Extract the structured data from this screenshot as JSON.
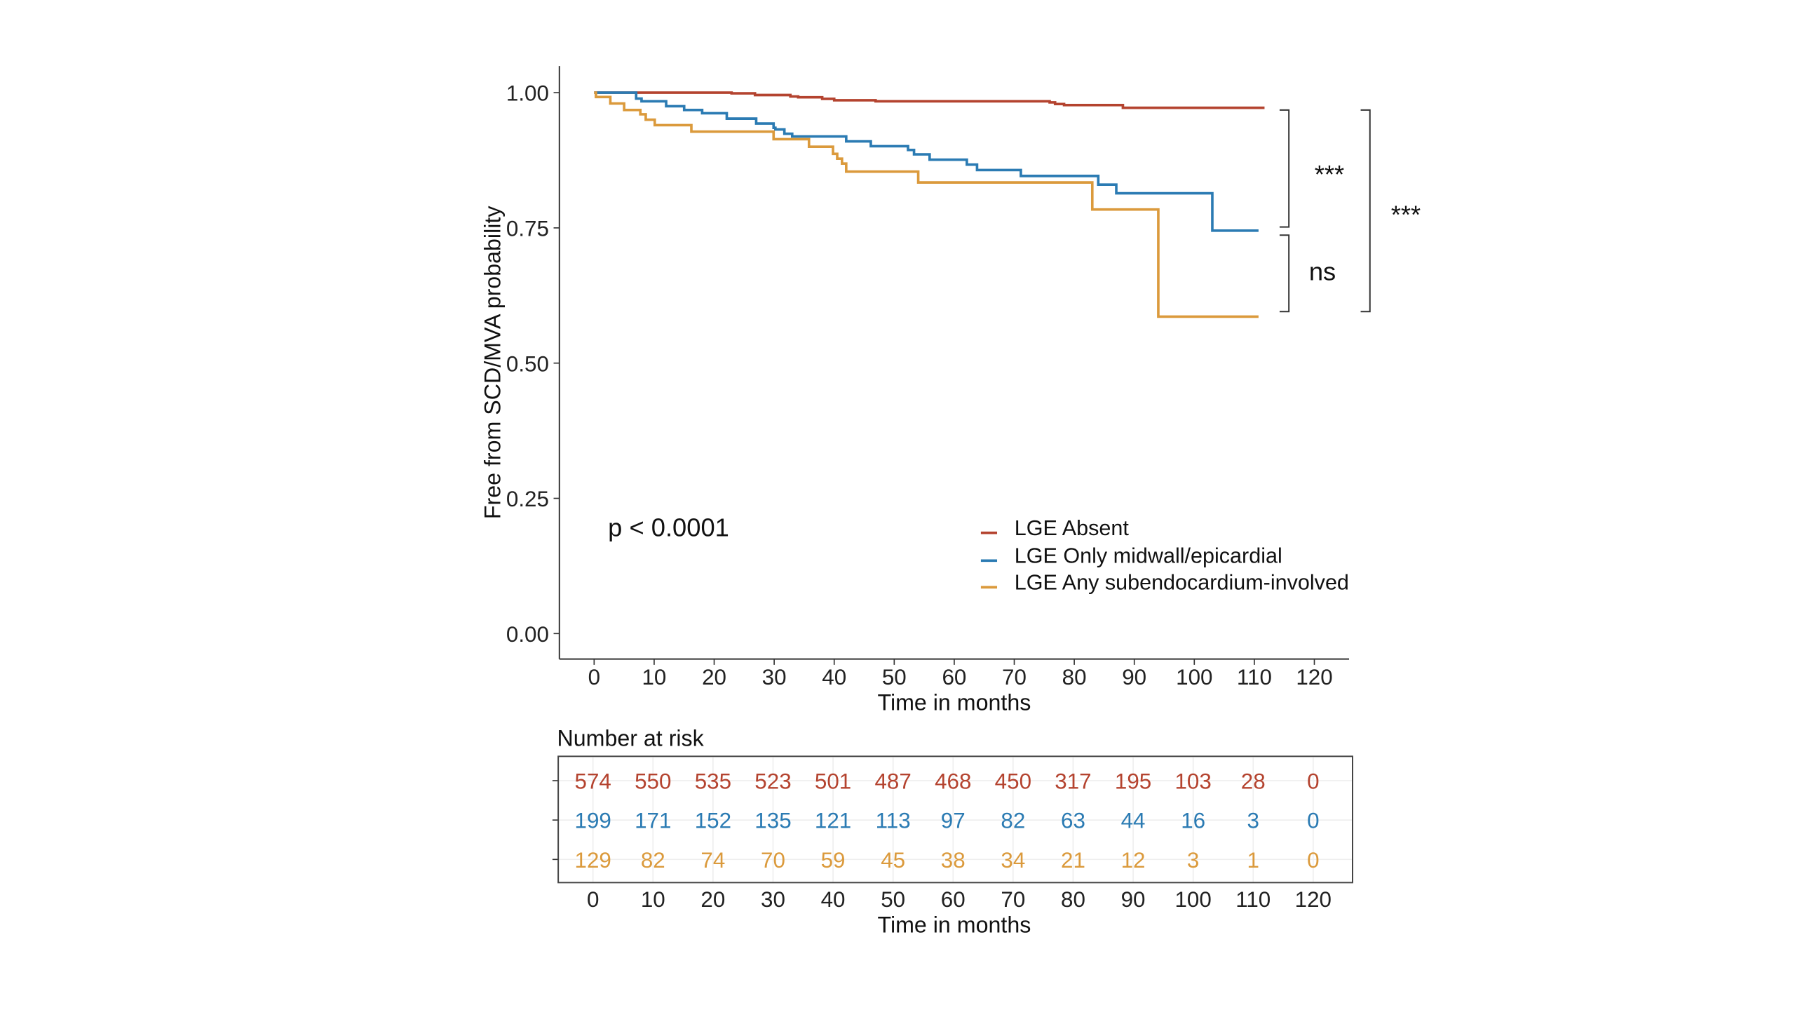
{
  "chart_data": {
    "type": "line",
    "subtype": "kaplan-meier-step",
    "xlabel": "Time in months",
    "ylabel": "Free from SCD/MVA probability",
    "xlim": [
      0,
      120
    ],
    "ylim": [
      0,
      1
    ],
    "x_ticks": [
      "0",
      "10",
      "20",
      "30",
      "40",
      "50",
      "60",
      "70",
      "80",
      "90",
      "100",
      "110",
      "120"
    ],
    "x_tick_values": [
      0,
      10,
      20,
      30,
      40,
      50,
      60,
      70,
      80,
      90,
      100,
      110,
      120
    ],
    "y_ticks": [
      "0.00",
      "0.25",
      "0.50",
      "0.75",
      "1.00"
    ],
    "y_tick_values": [
      0,
      0.25,
      0.5,
      0.75,
      1
    ],
    "grid": false,
    "legend_placement": "bottom-right",
    "annotation": "p < 0.0001",
    "series": [
      {
        "name": "LGE Absent",
        "color": "#b4432f",
        "steps": [
          [
            0,
            1.0
          ],
          [
            22.9,
            0.9987
          ],
          [
            26.8,
            0.9956
          ],
          [
            32.7,
            0.993
          ],
          [
            34,
            0.9915
          ],
          [
            38,
            0.9886
          ],
          [
            40,
            0.986
          ],
          [
            46.9,
            0.984
          ],
          [
            75.9,
            0.982
          ],
          [
            76.8,
            0.979
          ],
          [
            78.3,
            0.977
          ],
          [
            88.1,
            0.972
          ],
          [
            111.7,
            0.972
          ]
        ]
      },
      {
        "name": "LGE Only midwall/epicardial",
        "color": "#2b7bb3",
        "steps": [
          [
            0,
            1.0
          ],
          [
            7.0,
            0.989
          ],
          [
            7.9,
            0.984
          ],
          [
            12,
            0.975
          ],
          [
            15,
            0.968
          ],
          [
            18,
            0.962
          ],
          [
            22.1,
            0.952
          ],
          [
            27,
            0.943
          ],
          [
            29.9,
            0.935
          ],
          [
            30.2,
            0.932
          ],
          [
            31.7,
            0.924
          ],
          [
            33,
            0.919
          ],
          [
            42,
            0.91
          ],
          [
            46.1,
            0.901
          ],
          [
            52.3,
            0.894
          ],
          [
            53.3,
            0.886
          ],
          [
            55.9,
            0.876
          ],
          [
            62.1,
            0.867
          ],
          [
            63.8,
            0.857
          ],
          [
            71.1,
            0.846
          ],
          [
            84,
            0.83
          ],
          [
            87,
            0.814
          ],
          [
            103,
            0.745
          ],
          [
            110.7,
            0.745
          ]
        ]
      },
      {
        "name": "LGE Any subendocardium-involved",
        "color": "#db9a3c",
        "steps": [
          [
            0,
            1.0
          ],
          [
            0.3,
            0.992
          ],
          [
            2.7,
            0.98
          ],
          [
            5,
            0.968
          ],
          [
            7.7,
            0.96
          ],
          [
            8.6,
            0.95
          ],
          [
            10.1,
            0.94
          ],
          [
            16.2,
            0.928
          ],
          [
            29.9,
            0.914
          ],
          [
            35.8,
            0.9
          ],
          [
            39.8,
            0.887
          ],
          [
            40.5,
            0.878
          ],
          [
            41.3,
            0.869
          ],
          [
            42,
            0.854
          ],
          [
            54,
            0.834
          ],
          [
            83,
            0.784
          ],
          [
            94,
            0.586
          ],
          [
            110.7,
            0.586
          ]
        ]
      }
    ],
    "comparisons": [
      {
        "groups": [
          "LGE Absent",
          "LGE Only midwall/epicardial"
        ],
        "label": "***"
      },
      {
        "groups": [
          "LGE Only midwall/epicardial",
          "LGE Any subendocardium-involved"
        ],
        "label": "ns"
      },
      {
        "groups": [
          "LGE Absent",
          "LGE Any subendocardium-involved"
        ],
        "label": "***"
      }
    ],
    "risk_table": {
      "title": "Number at risk",
      "xlabel": "Time in months",
      "times": [
        0,
        10,
        20,
        30,
        40,
        50,
        60,
        70,
        80,
        90,
        100,
        110,
        120
      ],
      "rows": [
        {
          "series": "LGE Absent",
          "values": [
            "574",
            "550",
            "535",
            "523",
            "501",
            "487",
            "468",
            "450",
            "317",
            "195",
            "103",
            "28",
            "0"
          ]
        },
        {
          "series": "LGE Only midwall/epicardial",
          "values": [
            "199",
            "171",
            "152",
            "135",
            "121",
            "113",
            "97",
            "82",
            "63",
            "44",
            "16",
            "3",
            "0"
          ]
        },
        {
          "series": "LGE Any subendocardium-involved",
          "values": [
            "129",
            "82",
            "74",
            "70",
            "59",
            "45",
            "38",
            "34",
            "21",
            "12",
            "3",
            "1",
            "0"
          ]
        }
      ]
    }
  }
}
